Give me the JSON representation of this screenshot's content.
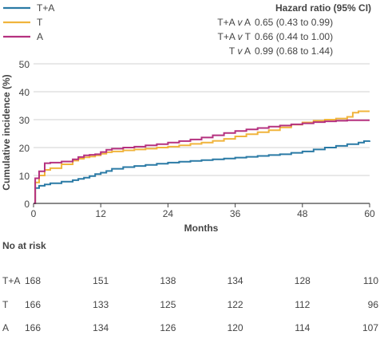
{
  "chart_data": {
    "type": "line",
    "step": true,
    "xlabel": "Months",
    "ylabel": "Cumulative incidence (%)",
    "xlim": [
      0,
      60
    ],
    "ylim": [
      0,
      50
    ],
    "xticks": [
      0,
      12,
      24,
      36,
      48,
      60
    ],
    "yticks": [
      0,
      10,
      20,
      30,
      40,
      50
    ],
    "grid": "horizontal",
    "legend_position": "top-left",
    "series": [
      {
        "name": "T+A",
        "color": "#2a7aa5",
        "x": [
          0,
          0.3,
          1,
          2,
          3,
          5,
          7,
          8,
          9,
          10,
          11,
          12,
          13,
          14,
          16,
          18,
          20,
          22,
          24,
          26,
          28,
          30,
          32,
          34,
          36,
          38,
          40,
          42,
          44,
          46,
          48,
          50,
          52,
          54,
          56,
          58,
          59,
          60
        ],
        "y": [
          0,
          5.5,
          6.3,
          6.8,
          7.2,
          7.8,
          8.3,
          8.8,
          9.2,
          9.8,
          10.5,
          11,
          11.6,
          12.4,
          13.0,
          13.4,
          13.8,
          14.2,
          14.6,
          14.9,
          15.2,
          15.5,
          15.8,
          16.1,
          16.4,
          16.7,
          17.0,
          17.3,
          17.6,
          18.1,
          18.6,
          19.3,
          20.0,
          20.6,
          21.2,
          21.8,
          22.3,
          22.5
        ]
      },
      {
        "name": "T",
        "color": "#f0b43c",
        "x": [
          0,
          0.3,
          1,
          2,
          3,
          5,
          7,
          8,
          9,
          10,
          11,
          12,
          13,
          14,
          16,
          18,
          20,
          22,
          24,
          26,
          28,
          30,
          32,
          34,
          36,
          38,
          40,
          42,
          44,
          46,
          48,
          50,
          52,
          54,
          56,
          57,
          58,
          60
        ],
        "y": [
          0,
          7.5,
          10,
          12,
          12.6,
          14,
          15.3,
          16,
          16.5,
          16.8,
          17.2,
          17.8,
          18.3,
          18.6,
          19.0,
          19.3,
          19.6,
          20.0,
          20.3,
          20.8,
          21.3,
          21.8,
          22.4,
          23.1,
          24.0,
          24.8,
          25.5,
          26.2,
          27.2,
          28.2,
          29.0,
          29.6,
          30.0,
          30.4,
          31.0,
          32.5,
          33.0,
          33.0
        ]
      },
      {
        "name": "A",
        "color": "#b5317f",
        "x": [
          0,
          0.3,
          1,
          2,
          3,
          5,
          7,
          8,
          9,
          10,
          11,
          12,
          13,
          14,
          16,
          18,
          20,
          22,
          24,
          26,
          28,
          30,
          32,
          34,
          36,
          38,
          40,
          42,
          44,
          46,
          48,
          50,
          52,
          54,
          56,
          58,
          60
        ],
        "y": [
          0,
          9.0,
          11.5,
          14.4,
          14.6,
          15.0,
          15.8,
          16.6,
          17.2,
          17.4,
          17.6,
          18.4,
          19.2,
          19.6,
          20.0,
          20.3,
          20.8,
          21.2,
          21.8,
          22.3,
          22.9,
          23.6,
          24.4,
          25.2,
          25.9,
          26.5,
          27.0,
          27.5,
          27.9,
          28.3,
          28.7,
          29.1,
          29.4,
          29.6,
          29.8,
          29.8,
          29.8
        ]
      }
    ],
    "hazard_ratio_title": "Hazard ratio (95% CI)",
    "hazard_ratios": [
      {
        "g1": "T+A",
        "g2": "A",
        "value": "0.65 (0.43 to 0.99)"
      },
      {
        "g1": "T+A",
        "g2": "T",
        "value": "0.66 (0.44 to 1.00)"
      },
      {
        "g1": "T",
        "g2": "A",
        "value": "0.99 (0.68 to 1.44)"
      }
    ],
    "vs_label": "v",
    "risk_table": {
      "title": "No at risk",
      "rows": [
        {
          "group": "T+A",
          "values": [
            "168",
            "151",
            "138",
            "134",
            "128",
            "110"
          ]
        },
        {
          "group": "T",
          "values": [
            "166",
            "133",
            "125",
            "122",
            "112",
            "96"
          ]
        },
        {
          "group": "A",
          "values": [
            "166",
            "134",
            "126",
            "120",
            "114",
            "107"
          ]
        }
      ]
    }
  }
}
